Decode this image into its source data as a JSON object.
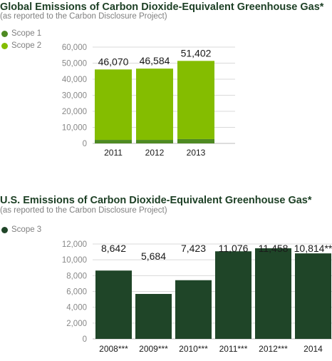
{
  "colors": {
    "scope1": "#4e8a22",
    "scope2": "#84bd00",
    "scope3": "#1f4528",
    "title": "#1c3f24",
    "axis_text": "#888888",
    "grid": "#d9d9d9"
  },
  "chart_data": [
    {
      "type": "bar",
      "stacked": true,
      "title": "Global Emissions of Carbon Dioxide-Equivalent Greenhouse Gas*",
      "subtitle": "(as reported to the Carbon Disclosure Project)",
      "categories": [
        "2011",
        "2012",
        "2013"
      ],
      "series": [
        {
          "name": "Scope 1",
          "color": "#4e8a22",
          "values": [
            2200,
            2200,
            2700
          ]
        },
        {
          "name": "Scope 2",
          "color": "#84bd00",
          "values": [
            43870,
            44384,
            48702
          ]
        }
      ],
      "totals": [
        46070,
        46584,
        51402
      ],
      "total_labels": [
        "46,070",
        "46,584",
        "51,402"
      ],
      "yticks": [
        "60,000",
        "50,000",
        "40,000",
        "30,000",
        "20,000",
        "10,000",
        "0"
      ],
      "ylim": [
        0,
        60000
      ],
      "grid": true,
      "legend_position": "top-left"
    },
    {
      "type": "bar",
      "title": "U.S. Emissions of Carbon Dioxide-Equivalent Greenhouse Gas*",
      "subtitle": "(as reported to the Carbon Disclosure Project)",
      "categories": [
        "2008***",
        "2009***",
        "2010***",
        "2011***",
        "2012***",
        "2014"
      ],
      "series": [
        {
          "name": "Scope 3",
          "color": "#1f4528",
          "values": [
            8642,
            5684,
            7423,
            11076,
            11458,
            10814
          ]
        }
      ],
      "value_labels": [
        "8,642",
        "5,684",
        "7,423",
        "11,076",
        "11,458",
        "10,814**"
      ],
      "yticks": [
        "12,000",
        "10,000",
        "8,000",
        "6,000",
        "4,000",
        "2,000",
        "0"
      ],
      "ylim": [
        0,
        12000
      ],
      "grid": true,
      "legend_position": "top-left"
    }
  ]
}
